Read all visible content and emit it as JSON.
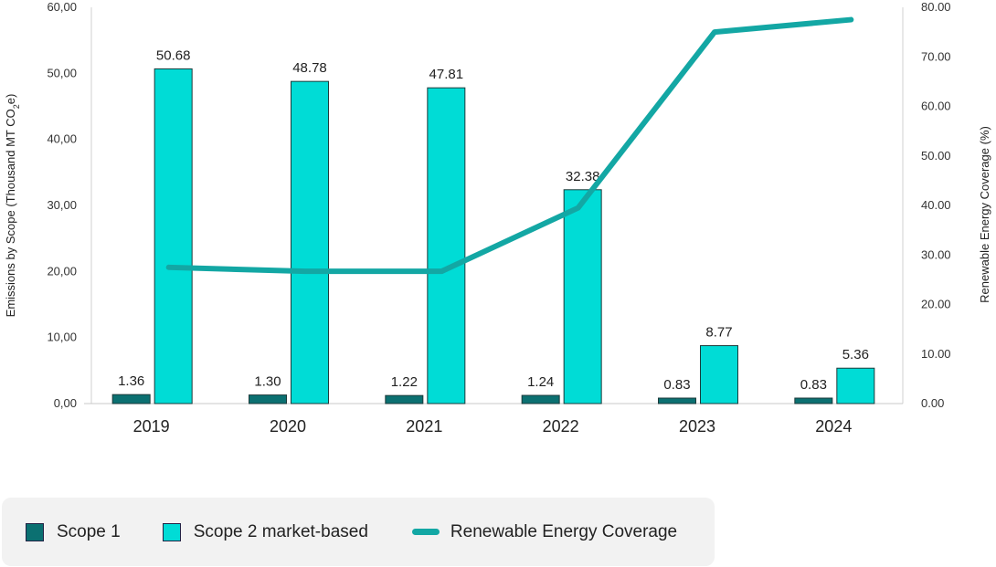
{
  "chart_data": {
    "type": "bar",
    "categories": [
      "2019",
      "2020",
      "2021",
      "2022",
      "2023",
      "2024"
    ],
    "series": [
      {
        "name": "Scope 1",
        "kind": "bar",
        "axis": "left",
        "color": "#0b7071",
        "values": [
          1.36,
          1.3,
          1.22,
          1.24,
          0.83,
          0.83
        ],
        "labels": [
          "1.36",
          "1.30",
          "1.22",
          "1.24",
          "0.83",
          "0.83"
        ]
      },
      {
        "name": "Scope 2 market-based",
        "kind": "bar",
        "axis": "left",
        "color": "#00dcd6",
        "values": [
          50.68,
          48.78,
          47.81,
          32.38,
          8.77,
          5.36
        ],
        "labels": [
          "50.68",
          "48.78",
          "47.81",
          "32.38",
          "8.77",
          "5.36"
        ]
      },
      {
        "name": "Renewable Energy Coverage",
        "kind": "line",
        "axis": "right",
        "color": "#13a7a4",
        "values": [
          27.5,
          26.7,
          26.7,
          39.5,
          75.0,
          77.5
        ]
      }
    ],
    "y_left": {
      "label_main": "Emissions by Scope (Thousand MT CO",
      "label_sub": "2",
      "label_tail": "e)",
      "range": [
        0,
        60
      ],
      "ticks": [
        "0,00",
        "10,00",
        "20,00",
        "30,00",
        "40,00",
        "50,00",
        "60,00"
      ]
    },
    "y_right": {
      "label": "Renewable Energy Coverage (%)",
      "range": [
        0,
        80
      ],
      "ticks": [
        "0.00",
        "10.00",
        "20.00",
        "30.00",
        "40.00",
        "50.00",
        "60.00",
        "70.00",
        "80.00"
      ]
    },
    "legend": {
      "placement": "bottom-left",
      "items": [
        "Scope 1",
        "Scope 2 market-based",
        "Renewable Energy Coverage"
      ]
    },
    "grid": false
  }
}
